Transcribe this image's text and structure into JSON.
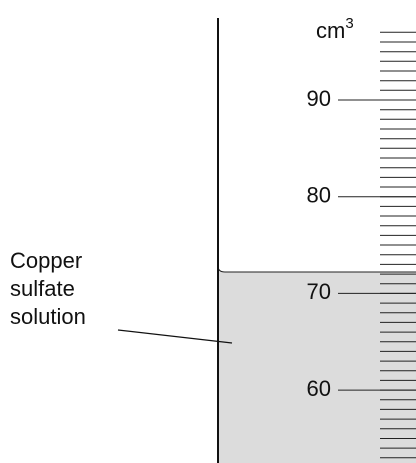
{
  "unit": {
    "base": "cm",
    "exponent": "3"
  },
  "scale_labels": [
    "90",
    "80",
    "70",
    "60"
  ],
  "label": [
    "Copper",
    "sulfate",
    "solution"
  ]
}
